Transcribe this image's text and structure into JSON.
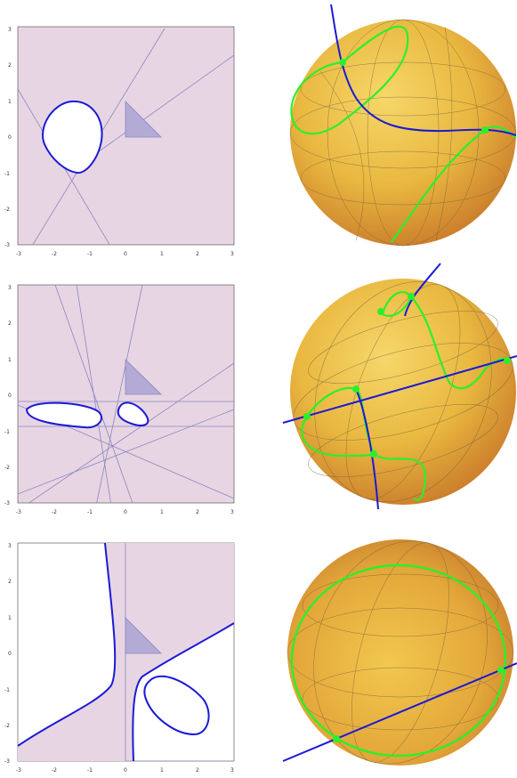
{
  "figure": {
    "panels": [
      {
        "id": "row1",
        "plot": {
          "x_ticks": [
            "-3",
            "-2",
            "-1",
            "0",
            "1",
            "2",
            "3"
          ],
          "y_ticks": [
            "3",
            "2",
            "1",
            "0",
            "-1",
            "-2",
            "-3"
          ]
        }
      },
      {
        "id": "row2",
        "plot": {
          "x_ticks": [
            "-3",
            "-2",
            "-1",
            "0",
            "1",
            "2",
            "3"
          ],
          "y_ticks": [
            "3",
            "2",
            "1",
            "0",
            "-1",
            "-2",
            "-3"
          ]
        }
      },
      {
        "id": "row3",
        "plot": {
          "x_ticks": [
            "-3",
            "-2",
            "-1",
            "0",
            "1",
            "2",
            "3"
          ],
          "y_ticks": [
            "3",
            "2",
            "1",
            "0",
            "-1",
            "-2",
            "-3"
          ]
        }
      }
    ],
    "colors": {
      "region_fill": "#e8d5e3",
      "curve_blue": "#1a1ad6",
      "line_gray_blue": "#8a86c0",
      "triangle_fill": "#b3abd6",
      "sphere_fill": "#e8b43a",
      "green_curve": "#2af02a"
    }
  }
}
